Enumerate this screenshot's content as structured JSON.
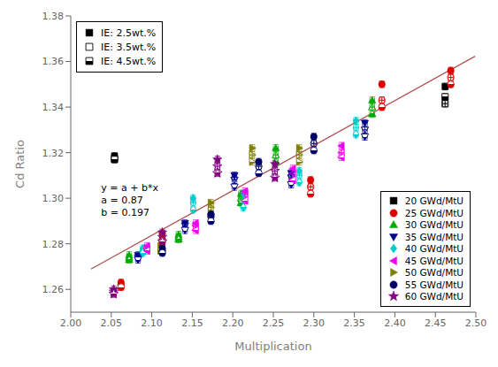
{
  "chart_data": {
    "type": "scatter",
    "xlabel": "Multiplication",
    "ylabel": "Cd Ratio",
    "xlim": [
      2.0,
      2.5
    ],
    "ylim": [
      1.25,
      1.38
    ],
    "xticks": [
      {
        "value": 2.0,
        "label": "2.00"
      },
      {
        "value": 2.05,
        "label": "2.05"
      },
      {
        "value": 2.1,
        "label": "2.10"
      },
      {
        "value": 2.15,
        "label": "2.15"
      },
      {
        "value": 2.2,
        "label": "2.20"
      },
      {
        "value": 2.25,
        "label": "2.25"
      },
      {
        "value": 2.3,
        "label": "2.30"
      },
      {
        "value": 2.35,
        "label": "2.35"
      },
      {
        "value": 2.4,
        "label": "2.40"
      },
      {
        "value": 2.45,
        "label": "2.45"
      },
      {
        "value": 2.5,
        "label": "2.50"
      }
    ],
    "yticks": [
      {
        "value": 1.26,
        "label": "1.26"
      },
      {
        "value": 1.28,
        "label": "1.28"
      },
      {
        "value": 1.3,
        "label": "1.30"
      },
      {
        "value": 1.32,
        "label": "1.32"
      },
      {
        "value": 1.34,
        "label": "1.34"
      },
      {
        "value": 1.36,
        "label": "1.36"
      },
      {
        "value": 1.38,
        "label": "1.38"
      }
    ],
    "grid": false,
    "xerr": 0.003,
    "yerr": 0.0015,
    "annotations": [
      {
        "text": "y = a + b*x\na = 0.87\nb = 0.197"
      }
    ],
    "lines": [
      {
        "type": "line",
        "color": "#b05050",
        "x": [
          2.025,
          2.499
        ],
        "values": [
          1.268925,
          1.362303
        ]
      }
    ],
    "subgroups": {
      "legend": "upper left",
      "color": "#000000",
      "marker": "square",
      "items": [
        {
          "name": "IE: 2.5wt.%",
          "marker": "filled"
        },
        {
          "name": "IE: 3.5wt.%",
          "marker": "open"
        },
        {
          "name": "IE: 4.5wt.%",
          "marker": "half-filled"
        }
      ]
    },
    "legend": "lower right",
    "series": [
      {
        "name": "20 GWd/MtU",
        "color": "#000000",
        "marker": "square",
        "groups": [
          {
            "x": [
              2.054,
              2.462
            ],
            "values": [
              1.3185,
              1.349
            ]
          },
          {
            "x": [
              2.054,
              2.462
            ],
            "values": [
              1.3175,
              1.3415
            ]
          },
          {
            "x": [
              2.054,
              2.462
            ],
            "values": [
              1.317,
              1.3445
            ]
          }
        ]
      },
      {
        "name": "25 GWd/MtU",
        "color": "#dd0000",
        "marker": "circle",
        "groups": [
          {
            "x": [
              2.062,
              2.113,
              2.296,
              2.384,
              2.469
            ],
            "values": [
              1.263,
              1.2845,
              1.308,
              1.35,
              1.356
            ]
          },
          {
            "x": [
              2.062,
              2.113,
              2.296,
              2.384,
              2.469
            ],
            "values": [
              1.262,
              1.282,
              1.305,
              1.343,
              1.353
            ]
          },
          {
            "x": [
              2.062,
              2.113,
              2.296,
              2.384,
              2.469
            ],
            "values": [
              1.261,
              1.281,
              1.302,
              1.34,
              1.35
            ]
          }
        ]
      },
      {
        "name": "30 GWd/MtU",
        "color": "#00aa00",
        "marker": "triangle-up",
        "groups": [
          {
            "x": [
              2.072,
              2.133,
              2.21,
              2.253,
              2.372
            ],
            "values": [
              1.275,
              1.284,
              1.302,
              1.322,
              1.343
            ]
          },
          {
            "x": [
              2.072,
              2.133,
              2.21,
              2.253,
              2.372
            ],
            "values": [
              1.274,
              1.283,
              1.3,
              1.319,
              1.34
            ]
          },
          {
            "x": [
              2.072,
              2.133,
              2.21,
              2.253,
              2.372
            ],
            "values": [
              1.273,
              1.282,
              1.298,
              1.316,
              1.337
            ]
          }
        ]
      },
      {
        "name": "35 GWd/MtU",
        "color": "#00008b",
        "marker": "triangle-down",
        "groups": [
          {
            "x": [
              2.083,
              2.141,
              2.202,
              2.272,
              2.363
            ],
            "values": [
              1.275,
              1.289,
              1.31,
              1.311,
              1.333
            ]
          },
          {
            "x": [
              2.083,
              2.141,
              2.202,
              2.272,
              2.363
            ],
            "values": [
              1.274,
              1.288,
              1.308,
              1.309,
              1.33
            ]
          },
          {
            "x": [
              2.083,
              2.141,
              2.202,
              2.272,
              2.363
            ],
            "values": [
              1.273,
              1.286,
              1.305,
              1.306,
              1.327
            ]
          }
        ]
      },
      {
        "name": "40 GWd/MtU",
        "color": "#00cccc",
        "marker": "diamond",
        "groups": [
          {
            "x": [
              2.089,
              2.151,
              2.213,
              2.282,
              2.352
            ],
            "values": [
              1.278,
              1.3,
              1.302,
              1.312,
              1.334
            ]
          },
          {
            "x": [
              2.089,
              2.151,
              2.213,
              2.282,
              2.352
            ],
            "values": [
              1.277,
              1.298,
              1.299,
              1.31,
              1.331
            ]
          },
          {
            "x": [
              2.089,
              2.151,
              2.213,
              2.282,
              2.352
            ],
            "values": [
              1.276,
              1.295,
              1.296,
              1.307,
              1.328
            ]
          }
        ]
      },
      {
        "name": "45 GWd/MtU",
        "color": "#ee00ee",
        "marker": "triangle-left",
        "groups": [
          {
            "x": [
              2.094,
              2.154,
              2.215,
              2.274,
              2.334
            ],
            "values": [
              1.279,
              1.289,
              1.303,
              1.313,
              1.323
            ]
          },
          {
            "x": [
              2.094,
              2.154,
              2.215,
              2.274,
              2.334
            ],
            "values": [
              1.278,
              1.288,
              1.302,
              1.311,
              1.32
            ]
          },
          {
            "x": [
              2.094,
              2.154,
              2.215,
              2.274,
              2.334
            ],
            "values": [
              1.277,
              1.286,
              1.299,
              1.308,
              1.318
            ]
          }
        ]
      },
      {
        "name": "50 GWd/MtU",
        "color": "#808000",
        "marker": "triangle-right",
        "groups": [
          {
            "x": [
              2.111,
              2.173,
              2.224,
              2.282
            ],
            "values": [
              1.279,
              1.298,
              1.322,
              1.322
            ]
          },
          {
            "x": [
              2.111,
              2.173,
              2.224,
              2.282
            ],
            "values": [
              1.278,
              1.296,
              1.319,
              1.319
            ]
          },
          {
            "x": [
              2.111,
              2.173,
              2.224,
              2.282
            ],
            "values": [
              1.277,
              1.293,
              1.316,
              1.316
            ]
          }
        ]
      },
      {
        "name": "55 GWd/MtU",
        "color": "#000066",
        "marker": "circle",
        "groups": [
          {
            "x": [
              2.113,
              2.173,
              2.232,
              2.3
            ],
            "values": [
              1.278,
              1.293,
              1.316,
              1.327
            ]
          },
          {
            "x": [
              2.113,
              2.173,
              2.232,
              2.3
            ],
            "values": [
              1.277,
              1.292,
              1.314,
              1.324
            ]
          },
          {
            "x": [
              2.113,
              2.173,
              2.232,
              2.3
            ],
            "values": [
              1.276,
              1.29,
              1.311,
              1.321
            ]
          }
        ]
      },
      {
        "name": "60 GWd/MtU",
        "color": "#800080",
        "marker": "star",
        "groups": [
          {
            "x": [
              2.053,
              2.113,
              2.181,
              2.252
            ],
            "values": [
              1.26,
              1.285,
              1.317,
              1.315
            ]
          },
          {
            "x": [
              2.053,
              2.113,
              2.181,
              2.252
            ],
            "values": [
              1.259,
              1.283,
              1.314,
              1.312
            ]
          },
          {
            "x": [
              2.053,
              2.113,
              2.181,
              2.252
            ],
            "values": [
              1.258,
              1.281,
              1.311,
              1.309
            ]
          }
        ]
      }
    ]
  }
}
